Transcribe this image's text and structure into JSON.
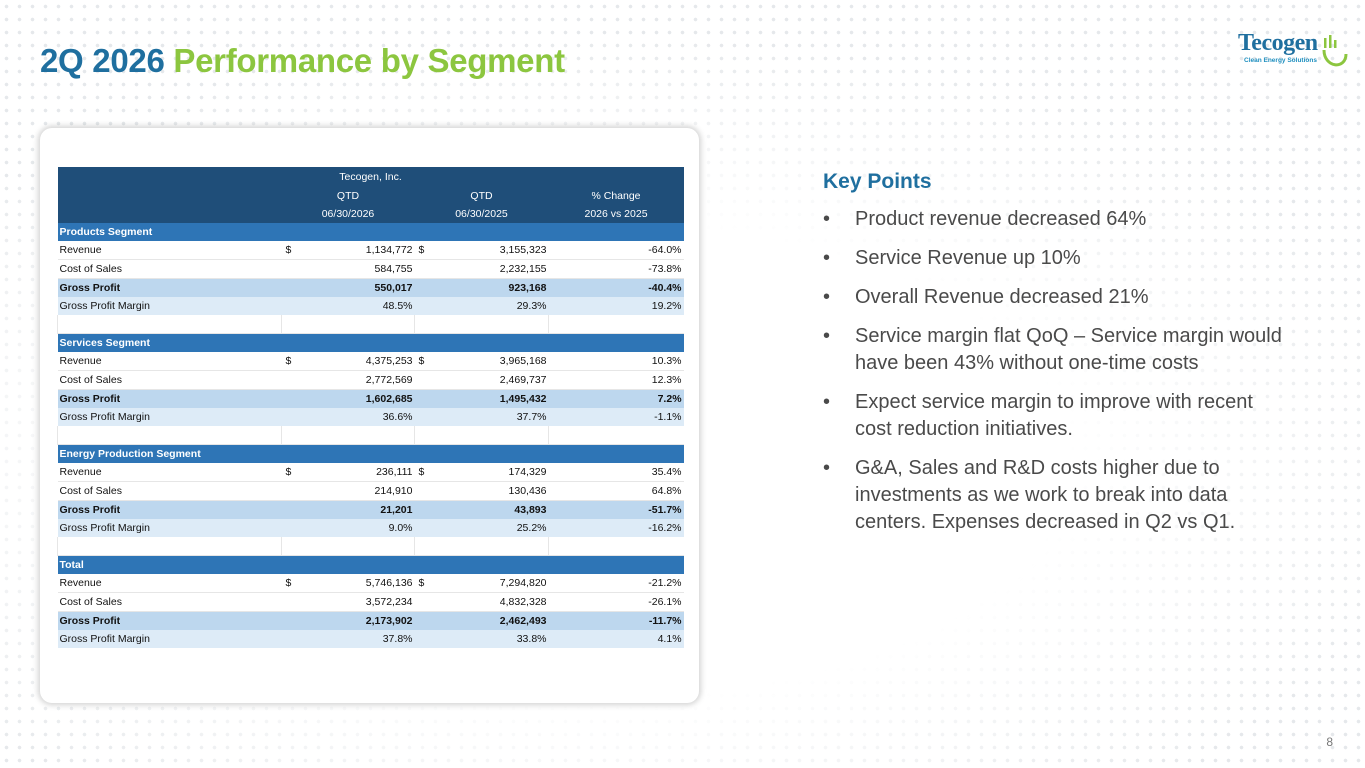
{
  "slide": {
    "title_part1": "2Q 2026",
    "title_part2": "Performance by Segment",
    "page_number": "8"
  },
  "logo": {
    "wordmark": "Tecogen",
    "tagline": "Clean Energy Solutions"
  },
  "table": {
    "company": "Tecogen, Inc.",
    "columns": [
      {
        "line1": "QTD",
        "line2": "06/30/2026"
      },
      {
        "line1": "QTD",
        "line2": "06/30/2025"
      },
      {
        "line1": "% Change",
        "line2": "2026 vs 2025"
      }
    ],
    "segments": [
      {
        "name": "Products Segment",
        "revenue": {
          "label": "Revenue",
          "sym1": "$",
          "v1": "1,134,772",
          "sym2": "$",
          "v2": "3,155,323",
          "chg": "-64.0%"
        },
        "cos": {
          "label": "Cost of Sales",
          "v1": "584,755",
          "v2": "2,232,155",
          "chg": "-73.8%"
        },
        "gp": {
          "label": "Gross Profit",
          "v1": "550,017",
          "v2": "923,168",
          "chg": "-40.4%"
        },
        "gpm": {
          "label": "Gross Profit Margin",
          "v1": "48.5%",
          "v2": "29.3%",
          "chg": "19.2%"
        }
      },
      {
        "name": "Services Segment",
        "revenue": {
          "label": "Revenue",
          "sym1": "$",
          "v1": "4,375,253",
          "sym2": "$",
          "v2": "3,965,168",
          "chg": "10.3%"
        },
        "cos": {
          "label": "Cost of Sales",
          "v1": "2,772,569",
          "v2": "2,469,737",
          "chg": "12.3%"
        },
        "gp": {
          "label": "Gross Profit",
          "v1": "1,602,685",
          "v2": "1,495,432",
          "chg": "7.2%"
        },
        "gpm": {
          "label": "Gross Profit Margin",
          "v1": "36.6%",
          "v2": "37.7%",
          "chg": "-1.1%"
        }
      },
      {
        "name": "Energy Production Segment",
        "revenue": {
          "label": "Revenue",
          "sym1": "$",
          "v1": "236,111",
          "sym2": "$",
          "v2": "174,329",
          "chg": "35.4%"
        },
        "cos": {
          "label": "Cost of Sales",
          "v1": "214,910",
          "v2": "130,436",
          "chg": "64.8%"
        },
        "gp": {
          "label": "Gross Profit",
          "v1": "21,201",
          "v2": "43,893",
          "chg": "-51.7%"
        },
        "gpm": {
          "label": "Gross Profit Margin",
          "v1": "9.0%",
          "v2": "25.2%",
          "chg": "-16.2%"
        }
      },
      {
        "name": "Total",
        "revenue": {
          "label": "Revenue",
          "sym1": "$",
          "v1": "5,746,136",
          "sym2": "$",
          "v2": "7,294,820",
          "chg": "-21.2%"
        },
        "cos": {
          "label": "Cost of Sales",
          "v1": "3,572,234",
          "v2": "4,832,328",
          "chg": "-26.1%"
        },
        "gp": {
          "label": "Gross Profit",
          "v1": "2,173,902",
          "v2": "2,462,493",
          "chg": "-11.7%"
        },
        "gpm": {
          "label": "Gross Profit Margin",
          "v1": "37.8%",
          "v2": "33.8%",
          "chg": "4.1%"
        }
      }
    ]
  },
  "key_points": {
    "title": "Key Points",
    "bullet_glyph": "•",
    "items": [
      "Product revenue decreased 64%",
      "Service Revenue up 10%",
      "Overall Revenue decreased 21%",
      "Service margin flat QoQ – Service margin would have been 43% without one-time costs",
      "Expect service margin to improve with recent cost reduction initiatives.",
      "G&A, Sales and R&D costs higher due to investments as we work to break into data centers. Expenses decreased in Q2 vs Q1."
    ]
  }
}
